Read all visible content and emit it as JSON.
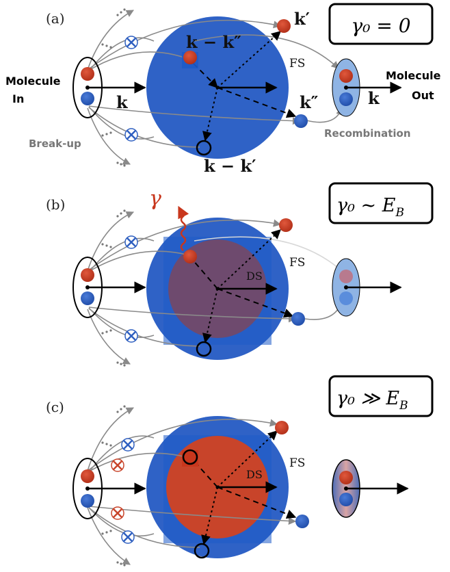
{
  "panels": [
    {
      "label": "(a)",
      "gamma_box": "γ₀ = 0",
      "fs_label": "FS",
      "ds_label": "",
      "k_labels": {
        "k_prime": "k′",
        "k_minus_k_dprime": "k − k″",
        "k_dprime": "k″",
        "k_minus_k_prime": "k − k′",
        "k_in": "k",
        "k_out": "k"
      },
      "molecule_in": [
        "Molecule",
        "In"
      ],
      "molecule_out": [
        "Molecule",
        "Out"
      ],
      "break_up": "Break-up",
      "recombination": "Recombination"
    },
    {
      "label": "(b)",
      "gamma_box": "γ₀ ∼ E",
      "gamma_box_sub": "B",
      "fs_label": "FS",
      "ds_label": "DS",
      "photon_label": "γ"
    },
    {
      "label": "(c)",
      "gamma_box": "γ₀ ≫ E",
      "gamma_box_sub": "B",
      "fs_label": "FS",
      "ds_label": "DS"
    }
  ],
  "colors": {
    "fermi_sea": "#2F62C6",
    "fermi_sea_square": "#1E5BC8",
    "ds_b": "#6E4A6E",
    "ds_c": "#C8442A",
    "red_particle": "#C8371D",
    "blue_particle": "#2E5FC0",
    "arrow_gray": "#8A8A8A",
    "photon": "#C8371D",
    "recomb_fill": "#8FB4E4"
  }
}
